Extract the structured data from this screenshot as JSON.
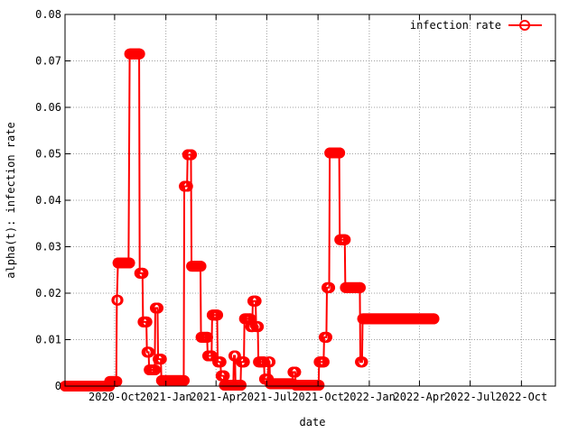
{
  "chart_data": {
    "type": "line",
    "xlabel": "date",
    "ylabel": "alpha(t): infection rate",
    "ylim": [
      0,
      0.08
    ],
    "xlim": [
      "2020-07-04",
      "2022-12-01"
    ],
    "grid": true,
    "legend_placement": "top-right",
    "y_ticks": [
      "0",
      "0.01",
      "0.02",
      "0.03",
      "0.04",
      "0.05",
      "0.06",
      "0.07",
      "0.08"
    ],
    "x_ticks": [
      {
        "date": "2020-10-01",
        "label": "2020-Oct"
      },
      {
        "date": "2021-01-01",
        "label": "2021-Jan"
      },
      {
        "date": "2021-04-01",
        "label": "2021-Apr"
      },
      {
        "date": "2021-07-01",
        "label": "2021-Jul"
      },
      {
        "date": "2021-10-01",
        "label": "2021-Oct"
      },
      {
        "date": "2022-01-01",
        "label": "2022-Jan"
      },
      {
        "date": "2022-04-01",
        "label": "2022-Apr"
      },
      {
        "date": "2022-07-01",
        "label": "2022-Jul"
      },
      {
        "date": "2022-10-01",
        "label": "2022-Oct"
      }
    ],
    "series": [
      {
        "name": "infection rate",
        "color": "#ff0000",
        "marker": "open-circle",
        "points": [
          [
            "2020-07-04",
            0.0
          ],
          [
            "2020-09-20",
            0.0
          ],
          [
            "2020-09-22",
            0.001
          ],
          [
            "2020-10-04",
            0.001
          ],
          [
            "2020-10-05",
            0.0185
          ],
          [
            "2020-10-07",
            0.0265
          ],
          [
            "2020-10-26",
            0.0265
          ],
          [
            "2020-10-28",
            0.0715
          ],
          [
            "2020-11-14",
            0.0715
          ],
          [
            "2020-11-15",
            0.0243
          ],
          [
            "2020-11-20",
            0.0243
          ],
          [
            "2020-11-21",
            0.0138
          ],
          [
            "2020-11-27",
            0.0138
          ],
          [
            "2020-11-28",
            0.0073
          ],
          [
            "2020-12-01",
            0.0073
          ],
          [
            "2020-12-02",
            0.0035
          ],
          [
            "2020-12-12",
            0.0035
          ],
          [
            "2020-12-13",
            0.0168
          ],
          [
            "2020-12-17",
            0.0168
          ],
          [
            "2020-12-18",
            0.0058
          ],
          [
            "2020-12-23",
            0.0058
          ],
          [
            "2020-12-24",
            0.0012
          ],
          [
            "2021-02-02",
            0.0012
          ],
          [
            "2021-02-03",
            0.043
          ],
          [
            "2021-02-08",
            0.043
          ],
          [
            "2021-02-09",
            0.0498
          ],
          [
            "2021-02-15",
            0.0498
          ],
          [
            "2021-02-16",
            0.0258
          ],
          [
            "2021-03-04",
            0.0258
          ],
          [
            "2021-03-05",
            0.0105
          ],
          [
            "2021-03-16",
            0.0105
          ],
          [
            "2021-03-17",
            0.0065
          ],
          [
            "2021-03-24",
            0.0065
          ],
          [
            "2021-03-25",
            0.0153
          ],
          [
            "2021-04-03",
            0.0153
          ],
          [
            "2021-04-04",
            0.0052
          ],
          [
            "2021-04-09",
            0.0052
          ],
          [
            "2021-04-10",
            0.0022
          ],
          [
            "2021-04-15",
            0.0022
          ],
          [
            "2021-04-16",
            0.0002
          ],
          [
            "2021-05-02",
            0.0002
          ],
          [
            "2021-05-03",
            0.0065
          ],
          [
            "2021-05-05",
            0.0065
          ],
          [
            "2021-05-06",
            0.0002
          ],
          [
            "2021-05-15",
            0.0002
          ],
          [
            "2021-05-16",
            0.0052
          ],
          [
            "2021-05-21",
            0.0052
          ],
          [
            "2021-05-22",
            0.0145
          ],
          [
            "2021-06-01",
            0.0145
          ],
          [
            "2021-06-02",
            0.0128
          ],
          [
            "2021-06-05",
            0.0128
          ],
          [
            "2021-06-06",
            0.0183
          ],
          [
            "2021-06-11",
            0.0183
          ],
          [
            "2021-06-12",
            0.0128
          ],
          [
            "2021-06-15",
            0.0128
          ],
          [
            "2021-06-16",
            0.0052
          ],
          [
            "2021-06-26",
            0.0052
          ],
          [
            "2021-06-27",
            0.0015
          ],
          [
            "2021-07-03",
            0.0015
          ],
          [
            "2021-07-04",
            0.0052
          ],
          [
            "2021-07-06",
            0.0052
          ],
          [
            "2021-07-07",
            0.0005
          ],
          [
            "2021-08-16",
            0.0005
          ],
          [
            "2021-08-17",
            0.003
          ],
          [
            "2021-08-21",
            0.003
          ],
          [
            "2021-08-22",
            0.0002
          ],
          [
            "2021-10-02",
            0.0002
          ],
          [
            "2021-10-03",
            0.0052
          ],
          [
            "2021-10-11",
            0.0052
          ],
          [
            "2021-10-12",
            0.0105
          ],
          [
            "2021-10-16",
            0.0105
          ],
          [
            "2021-10-17",
            0.0212
          ],
          [
            "2021-10-21",
            0.0212
          ],
          [
            "2021-10-22",
            0.0502
          ],
          [
            "2021-11-08",
            0.0502
          ],
          [
            "2021-11-09",
            0.0315
          ],
          [
            "2021-11-18",
            0.0315
          ],
          [
            "2021-11-19",
            0.0212
          ],
          [
            "2021-12-15",
            0.0212
          ],
          [
            "2021-12-16",
            0.0052
          ],
          [
            "2021-12-19",
            0.0052
          ],
          [
            "2021-12-20",
            0.0145
          ],
          [
            "2022-04-27",
            0.0145
          ]
        ]
      }
    ]
  }
}
